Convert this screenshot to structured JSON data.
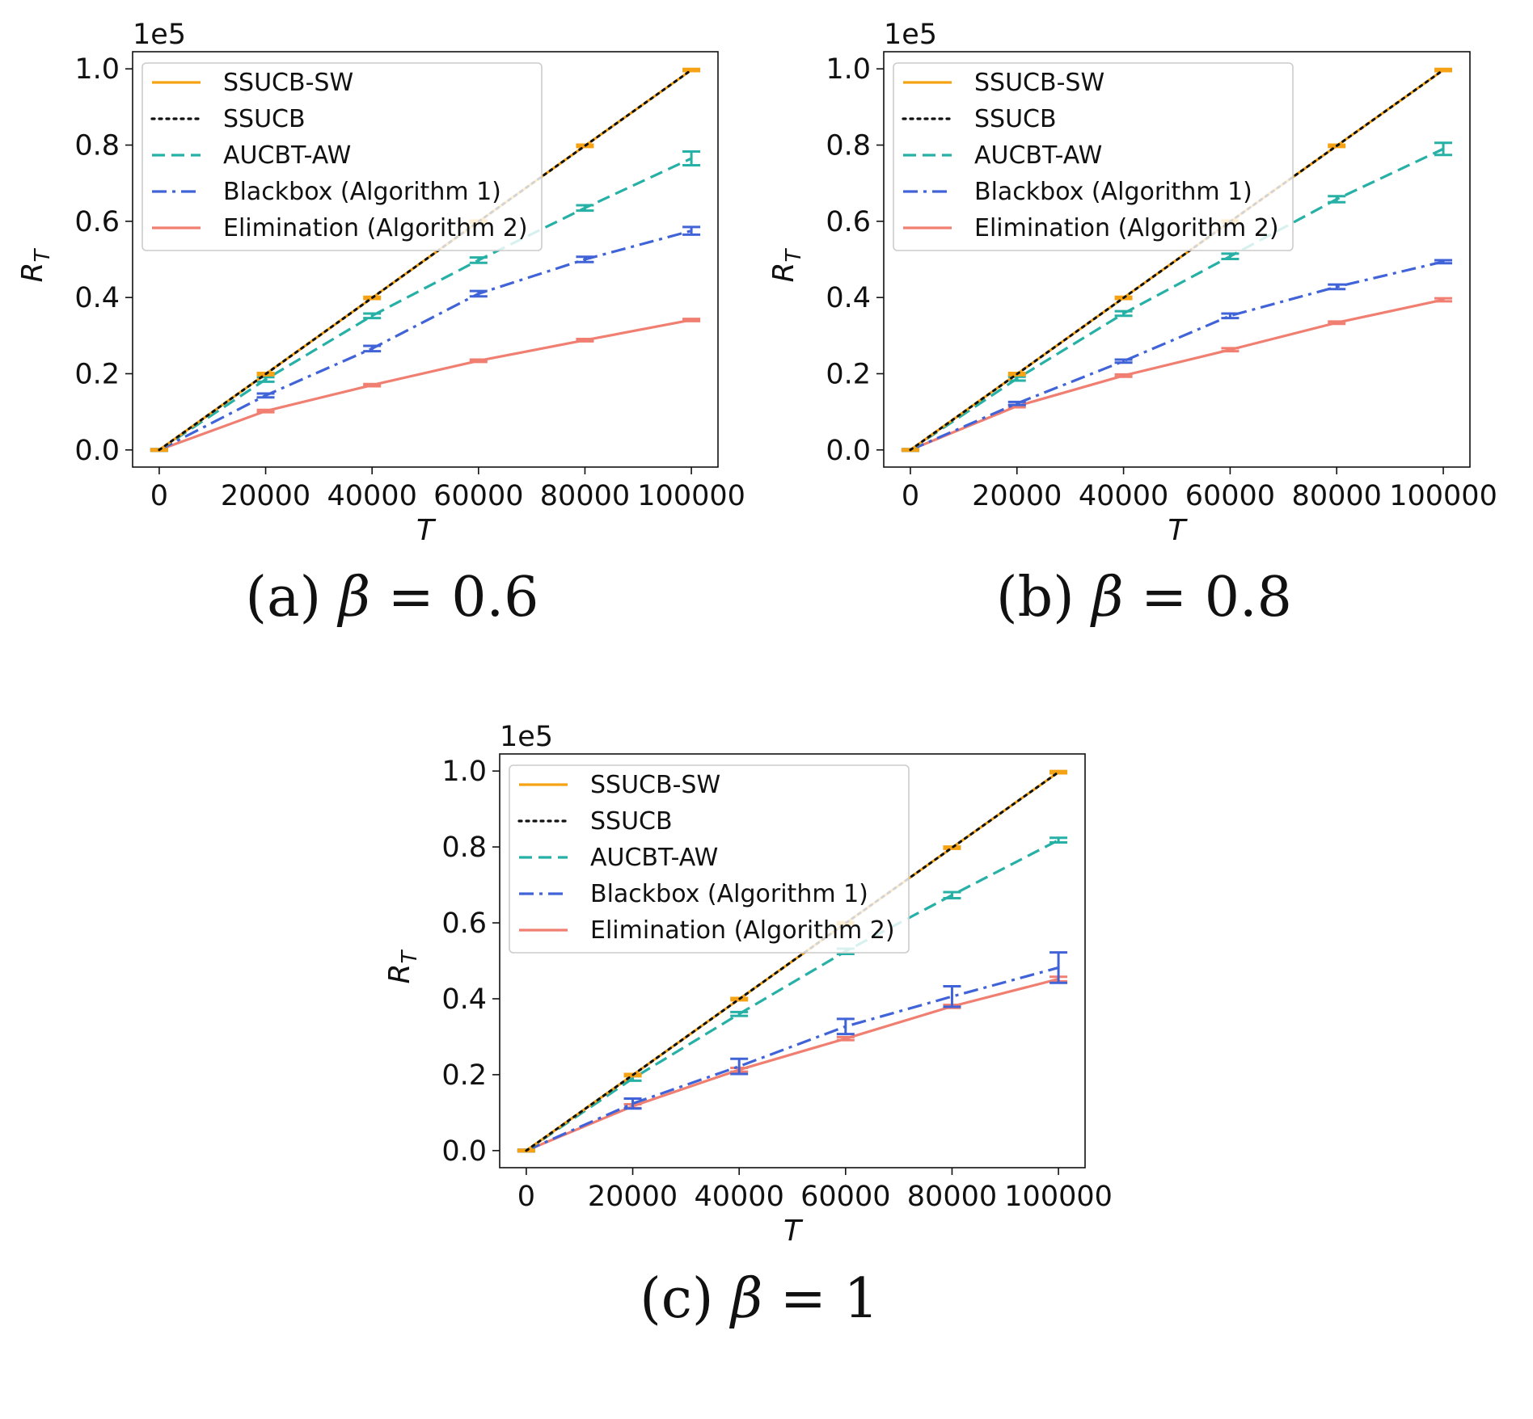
{
  "chart_data": [
    {
      "type": "line",
      "caption": {
        "label": "(a)",
        "symbol": "β",
        "relation": "=",
        "value": "0.6"
      },
      "xlabel": "T",
      "ylabel": "R_T",
      "y_exponent_label": "1e5",
      "xticks": [
        0,
        20000,
        40000,
        60000,
        80000,
        100000
      ],
      "yticks": [
        0.0,
        0.2,
        0.4,
        0.6,
        0.8,
        1.0
      ],
      "xlim": [
        -5000,
        105000
      ],
      "ylim": [
        -0.045,
        1.045
      ],
      "x": [
        0,
        20000,
        40000,
        60000,
        80000,
        100000
      ],
      "legend_position": "upper-left",
      "series": [
        {
          "name": "SSUCB-SW",
          "color": "#f5a314",
          "style": "solid",
          "values": [
            0,
            0.199,
            0.399,
            0.599,
            0.798,
            0.997
          ],
          "err": [
            0.002,
            0.003,
            0.003,
            0.003,
            0.003,
            0.003
          ]
        },
        {
          "name": "SSUCB",
          "color": "#111111",
          "style": "dotted",
          "values": [
            0,
            0.199,
            0.399,
            0.599,
            0.798,
            0.997
          ],
          "err": [
            0,
            0,
            0,
            0,
            0,
            0
          ]
        },
        {
          "name": "AUCBT-AW",
          "color": "#26b0a6",
          "style": "dashed",
          "values": [
            0,
            0.185,
            0.352,
            0.498,
            0.635,
            0.765
          ],
          "err": [
            0.002,
            0.006,
            0.006,
            0.007,
            0.007,
            0.018
          ]
        },
        {
          "name": "Blackbox (Algorithm 1)",
          "color": "#4163d8",
          "style": "dashdot",
          "values": [
            0,
            0.143,
            0.266,
            0.41,
            0.5,
            0.575
          ],
          "err": [
            0.002,
            0.005,
            0.007,
            0.007,
            0.007,
            0.01
          ]
        },
        {
          "name": "Elimination (Algorithm 2)",
          "color": "#f07f72",
          "style": "solid",
          "values": [
            0,
            0.102,
            0.17,
            0.234,
            0.288,
            0.341
          ],
          "err": [
            0.002,
            0.003,
            0.003,
            0.003,
            0.003,
            0.003
          ]
        }
      ]
    },
    {
      "type": "line",
      "caption": {
        "label": "(b)",
        "symbol": "β",
        "relation": "=",
        "value": "0.8"
      },
      "xlabel": "T",
      "ylabel": "R_T",
      "y_exponent_label": "1e5",
      "xticks": [
        0,
        20000,
        40000,
        60000,
        80000,
        100000
      ],
      "yticks": [
        0.0,
        0.2,
        0.4,
        0.6,
        0.8,
        1.0
      ],
      "xlim": [
        -5000,
        105000
      ],
      "ylim": [
        -0.045,
        1.045
      ],
      "x": [
        0,
        20000,
        40000,
        60000,
        80000,
        100000
      ],
      "legend_position": "upper-left",
      "series": [
        {
          "name": "SSUCB-SW",
          "color": "#f5a314",
          "style": "solid",
          "values": [
            0,
            0.199,
            0.399,
            0.599,
            0.798,
            0.997
          ],
          "err": [
            0.002,
            0.003,
            0.003,
            0.003,
            0.003,
            0.003
          ]
        },
        {
          "name": "SSUCB",
          "color": "#111111",
          "style": "dotted",
          "values": [
            0,
            0.199,
            0.399,
            0.599,
            0.798,
            0.997
          ],
          "err": [
            0,
            0,
            0,
            0,
            0,
            0
          ]
        },
        {
          "name": "AUCBT-AW",
          "color": "#26b0a6",
          "style": "dashed",
          "values": [
            0,
            0.187,
            0.358,
            0.508,
            0.658,
            0.79
          ],
          "err": [
            0.002,
            0.005,
            0.006,
            0.007,
            0.008,
            0.016
          ]
        },
        {
          "name": "Blackbox (Algorithm 1)",
          "color": "#4163d8",
          "style": "dashdot",
          "values": [
            0,
            0.122,
            0.233,
            0.352,
            0.428,
            0.494
          ],
          "err": [
            0.002,
            0.004,
            0.004,
            0.006,
            0.006,
            0.004
          ]
        },
        {
          "name": "Elimination (Algorithm 2)",
          "color": "#f07f72",
          "style": "solid",
          "values": [
            0,
            0.115,
            0.195,
            0.263,
            0.334,
            0.394
          ],
          "err": [
            0.002,
            0.003,
            0.003,
            0.004,
            0.003,
            0.004
          ]
        }
      ]
    },
    {
      "type": "line",
      "caption": {
        "label": "(c)",
        "symbol": "β",
        "relation": "=",
        "value": "1"
      },
      "xlabel": "T",
      "ylabel": "R_T",
      "y_exponent_label": "1e5",
      "xticks": [
        0,
        20000,
        40000,
        60000,
        80000,
        100000
      ],
      "yticks": [
        0.0,
        0.2,
        0.4,
        0.6,
        0.8,
        1.0
      ],
      "xlim": [
        -5000,
        105000
      ],
      "ylim": [
        -0.045,
        1.045
      ],
      "x": [
        0,
        20000,
        40000,
        60000,
        80000,
        100000
      ],
      "legend_position": "upper-left",
      "series": [
        {
          "name": "SSUCB-SW",
          "color": "#f5a314",
          "style": "solid",
          "values": [
            0,
            0.199,
            0.399,
            0.599,
            0.798,
            0.997
          ],
          "err": [
            0.002,
            0.003,
            0.003,
            0.003,
            0.003,
            0.003
          ]
        },
        {
          "name": "SSUCB",
          "color": "#111111",
          "style": "dotted",
          "values": [
            0,
            0.199,
            0.399,
            0.599,
            0.798,
            0.997
          ],
          "err": [
            0,
            0,
            0,
            0,
            0,
            0
          ]
        },
        {
          "name": "AUCBT-AW",
          "color": "#26b0a6",
          "style": "dashed",
          "values": [
            0,
            0.19,
            0.36,
            0.525,
            0.673,
            0.818
          ],
          "err": [
            0.002,
            0.006,
            0.005,
            0.007,
            0.008,
            0.006
          ]
        },
        {
          "name": "Blackbox (Algorithm 1)",
          "color": "#4163d8",
          "style": "dashdot",
          "values": [
            0,
            0.124,
            0.222,
            0.327,
            0.406,
            0.482
          ],
          "err": [
            0.002,
            0.013,
            0.02,
            0.02,
            0.027,
            0.04
          ]
        },
        {
          "name": "Elimination (Algorithm 2)",
          "color": "#f07f72",
          "style": "solid",
          "values": [
            0,
            0.117,
            0.213,
            0.295,
            0.38,
            0.452
          ],
          "err": [
            0.002,
            0.005,
            0.005,
            0.004,
            0.004,
            0.006
          ]
        }
      ]
    }
  ]
}
